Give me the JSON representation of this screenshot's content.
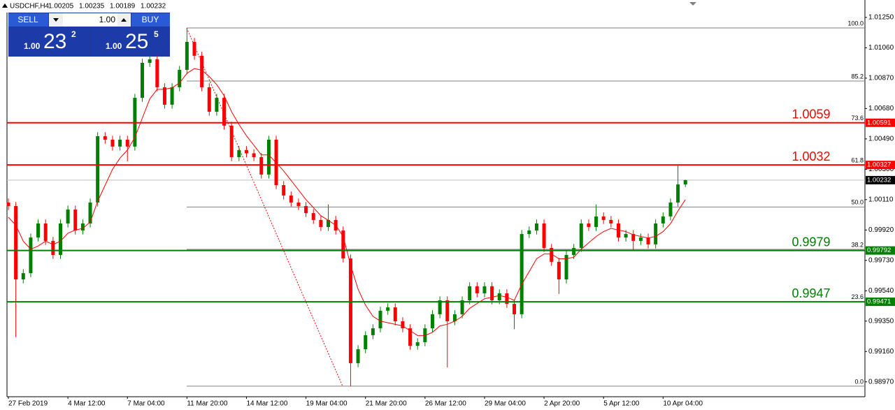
{
  "header": {
    "symbol": "USDCHF,H4"
  },
  "trade_panel": {
    "sell": "SELL",
    "buy": "BUY",
    "volume": "1.00",
    "bid": {
      "prefix": "1.00",
      "big": "23",
      "small": "2"
    },
    "ask": {
      "prefix": "1.00",
      "big": "25",
      "small": "5"
    }
  },
  "chart_data": {
    "type": "candlestick",
    "categories": [
      "27 Feb 2019",
      null,
      null,
      null,
      null,
      null,
      null,
      null,
      "4 Mar 12:00",
      null,
      null,
      null,
      null,
      null,
      null,
      null,
      "7 Mar 04:00",
      null,
      null,
      null,
      null,
      null,
      null,
      null,
      "11 Mar 20:00",
      null,
      null,
      null,
      null,
      null,
      null,
      null,
      "14 Mar 12:00",
      null,
      null,
      null,
      null,
      null,
      null,
      null,
      "19 Mar 04:00",
      null,
      null,
      null,
      null,
      null,
      null,
      null,
      "21 Mar 20:00",
      null,
      null,
      null,
      null,
      null,
      null,
      null,
      "26 Mar 12:00",
      null,
      null,
      null,
      null,
      null,
      null,
      null,
      "29 Mar 04:00",
      null,
      null,
      null,
      null,
      null,
      null,
      null,
      "2 Apr 20:00",
      null,
      null,
      null,
      null,
      null,
      null,
      null,
      "5 Apr 12:00",
      null,
      null,
      null,
      null,
      null,
      null,
      null,
      "10 Apr 04:00",
      null,
      null,
      null
    ],
    "open": [
      1.00092,
      1.0007,
      0.99611,
      0.9965,
      0.99873,
      0.99961,
      0.99852,
      0.99764,
      0.99961,
      1.00048,
      0.99917,
      0.99961,
      1.00092,
      1.00507,
      1.00485,
      1.00442,
      1.00485,
      1.00442,
      1.00747,
      1.00966,
      1.00988,
      1.00813,
      1.00704,
      1.00813,
      1.00922,
      1.01097,
      1.0101,
      1.00813,
      1.0066,
      1.00747,
      1.00573,
      1.00376,
      1.0042,
      1.004,
      1.00376,
      1.00267,
      1.00485,
      1.00201,
      1.00136,
      1.00092,
      1.0007,
      1.00026,
      0.99983,
      0.99939,
      0.99983,
      0.99917,
      0.99742,
      0.99087,
      0.99174,
      0.99262,
      0.99305,
      0.99415,
      0.99436,
      0.99349,
      0.99305,
      0.99196,
      0.99218,
      0.99305,
      0.99393,
      0.9948,
      0.99349,
      0.99393,
      0.9948,
      0.99568,
      0.99524,
      0.99568,
      0.9948,
      0.99524,
      0.99458,
      0.99393,
      0.99895,
      0.99917,
      0.99961,
      0.99808,
      0.99721,
      0.99611,
      0.99764,
      0.99808,
      0.99961,
      0.99939,
      1.00005,
      0.99983,
      0.99961,
      0.99873,
      0.99895,
      0.99852,
      0.99873,
      0.9983,
      0.99961,
      1.00005,
      1.00092,
      1.00205
    ],
    "high": [
      1.00117,
      1.00095,
      0.99675,
      0.99898,
      0.99986,
      0.99986,
      0.99877,
      0.99986,
      1.00073,
      1.00073,
      0.99986,
      1.00117,
      1.00532,
      1.00532,
      1.0051,
      1.0051,
      1.0051,
      1.00772,
      1.00991,
      1.01013,
      1.01013,
      1.00838,
      1.00838,
      1.00947,
      1.01184,
      1.01122,
      1.01035,
      1.00838,
      1.00772,
      1.00772,
      1.00598,
      1.00445,
      1.00445,
      1.00425,
      1.00401,
      1.0051,
      1.0051,
      1.00226,
      1.00161,
      1.00117,
      1.00095,
      1.00051,
      1.00008,
      1.0008,
      1.00008,
      0.99942,
      0.99767,
      0.99199,
      0.99287,
      0.9933,
      0.9944,
      0.99461,
      0.99461,
      0.99374,
      0.9933,
      0.99243,
      0.9933,
      0.99418,
      0.99505,
      0.99505,
      0.99418,
      0.99505,
      0.99593,
      0.99593,
      0.99593,
      0.99593,
      0.99549,
      0.99549,
      0.99483,
      0.9992,
      0.99942,
      0.99986,
      0.99986,
      0.99833,
      0.99746,
      0.99789,
      0.99833,
      0.99986,
      0.99986,
      1.0008,
      1.0003,
      1.00008,
      0.99986,
      0.9992,
      0.9992,
      0.99898,
      0.99898,
      0.99986,
      1.0003,
      1.00117,
      1.00327,
      1.00235
    ],
    "low": [
      1.00045,
      0.9925,
      0.99586,
      0.99625,
      0.99848,
      0.99827,
      0.99739,
      0.99739,
      0.99936,
      0.99892,
      0.99892,
      0.99936,
      1.00067,
      1.0046,
      1.00417,
      1.00417,
      1.0035,
      1.00417,
      1.00722,
      1.00941,
      1.00788,
      1.00679,
      1.00679,
      1.00788,
      1.00897,
      1.00985,
      1.00788,
      1.00635,
      1.00635,
      1.00548,
      1.00351,
      1.00351,
      1.00375,
      1.00351,
      1.00242,
      1.00242,
      1.00176,
      1.00111,
      1.00067,
      1.00045,
      1.00001,
      0.99958,
      0.99914,
      0.99914,
      0.99892,
      0.99717,
      0.98943,
      0.99062,
      0.99149,
      0.99237,
      0.9928,
      0.9939,
      0.99324,
      0.9928,
      0.99171,
      0.99171,
      0.99193,
      0.9928,
      0.99368,
      0.9906,
      0.99324,
      0.99368,
      0.99455,
      0.99499,
      0.99499,
      0.99455,
      0.99455,
      0.99433,
      0.993,
      0.99368,
      0.9987,
      0.99892,
      0.99783,
      0.99696,
      0.9952,
      0.99586,
      0.99739,
      0.99783,
      0.99914,
      0.99914,
      0.99958,
      0.99936,
      0.99848,
      0.99848,
      0.9979,
      0.99827,
      0.99805,
      0.99805,
      0.99936,
      0.9998,
      1.00067,
      1.00189
    ],
    "close": [
      1.0007,
      0.99611,
      0.9965,
      0.99873,
      0.99961,
      0.99852,
      0.99764,
      0.99961,
      1.00048,
      0.99917,
      0.99961,
      1.00092,
      1.00507,
      1.00485,
      1.00442,
      1.00485,
      1.00442,
      1.00747,
      1.00966,
      1.00988,
      1.00813,
      1.00704,
      1.00813,
      1.00922,
      1.01097,
      1.0101,
      1.00813,
      1.0066,
      1.00747,
      1.00573,
      1.00376,
      1.0042,
      1.004,
      1.00376,
      1.00267,
      1.00485,
      1.00201,
      1.00136,
      1.00092,
      1.0007,
      1.00026,
      0.99983,
      0.99939,
      0.99983,
      0.99917,
      0.99742,
      0.99087,
      0.99174,
      0.99262,
      0.99305,
      0.99415,
      0.99436,
      0.99349,
      0.99305,
      0.99196,
      0.99218,
      0.99305,
      0.99393,
      0.9948,
      0.99349,
      0.99393,
      0.9948,
      0.99568,
      0.99524,
      0.99568,
      0.9948,
      0.99524,
      0.99458,
      0.99393,
      0.99895,
      0.99917,
      0.99961,
      0.99808,
      0.99721,
      0.99611,
      0.99764,
      0.99808,
      0.99961,
      0.99939,
      1.00005,
      0.99983,
      0.99961,
      0.99873,
      0.99895,
      0.99852,
      0.99873,
      0.9983,
      0.99961,
      1.00005,
      1.00092,
      1.00205,
      1.00232
    ],
    "up_color": "#008000",
    "down_color": "#ff0000",
    "ma": {
      "color": "#ff0000",
      "values": [
        1.0,
        0.9995,
        0.9985,
        0.998,
        0.9982,
        0.9985,
        0.9983,
        0.9985,
        0.999,
        0.9992,
        0.9993,
        0.9997,
        1.001,
        1.002,
        1.003,
        1.0037,
        1.0042,
        1.005,
        1.0062,
        1.0074,
        1.008,
        1.008,
        1.0081,
        1.0084,
        1.009,
        1.0093,
        1.0092,
        1.0088,
        1.0083,
        1.0076,
        1.0066,
        1.0058,
        1.0051,
        1.0045,
        1.0039,
        1.0039,
        1.0034,
        1.0029,
        1.0023,
        1.0017,
        1.0011,
        1.0006,
        1.0001,
        0.9998,
        0.9995,
        0.9988,
        0.997,
        0.9955,
        0.9945,
        0.9938,
        0.9935,
        0.9934,
        0.9933,
        0.9932,
        0.9929,
        0.9926,
        0.9926,
        0.9928,
        0.9932,
        0.9933,
        0.9935,
        0.9938,
        0.9943,
        0.9946,
        0.9949,
        0.995,
        0.9951,
        0.995,
        0.9948,
        0.9958,
        0.9966,
        0.9974,
        0.9977,
        0.9977,
        0.9974,
        0.9974,
        0.9975,
        0.998,
        0.9984,
        0.9988,
        0.9991,
        0.9993,
        0.9992,
        0.9991,
        0.9989,
        0.9988,
        0.9987,
        0.9988,
        0.9991,
        0.9996,
        1.0004,
        1.0011
      ]
    },
    "ylim": [
      0.98877,
      1.01359
    ],
    "yticks": [
      {
        "value": 1.0125,
        "label": "1.01250"
      },
      {
        "value": 1.0106,
        "label": "1.01060"
      },
      {
        "value": 1.0087,
        "label": "1.00870"
      },
      {
        "value": 1.0068,
        "label": "1.00680"
      },
      {
        "value": 1.0049,
        "label": "1.00490"
      },
      {
        "value": 1.003,
        "label": "1.00300"
      },
      {
        "value": 1.0011,
        "label": "1.00110"
      },
      {
        "value": 0.9992,
        "label": "0.99920"
      },
      {
        "value": 0.9973,
        "label": "0.99730"
      },
      {
        "value": 0.9954,
        "label": "0.99540"
      },
      {
        "value": 0.9935,
        "label": "0.99350"
      },
      {
        "value": 0.9916,
        "label": "0.99160"
      },
      {
        "value": 0.9897,
        "label": "0.98970"
      }
    ],
    "fib_levels": [
      {
        "label": "100.0",
        "price": 1.01184
      },
      {
        "label": "85.2",
        "price": 1.00852
      },
      {
        "label": "73.6",
        "price": 1.00592
      },
      {
        "label": "61.8",
        "price": 1.00328
      },
      {
        "label": "50.0",
        "price": 1.00064
      },
      {
        "label": "38.2",
        "price": 0.99799
      },
      {
        "label": "23.6",
        "price": 0.99472
      },
      {
        "label": "0.0",
        "price": 0.98943
      }
    ],
    "levels": [
      {
        "label": "1.0059",
        "price": 1.00591,
        "color": "#ff0000"
      },
      {
        "label": "1.0032",
        "price": 1.00327,
        "color": "#ff0000"
      },
      {
        "label": "0.9979",
        "price": 0.99792,
        "color": "#008000"
      },
      {
        "label": "0.9947",
        "price": 0.99471,
        "color": "#008000"
      }
    ]
  }
}
